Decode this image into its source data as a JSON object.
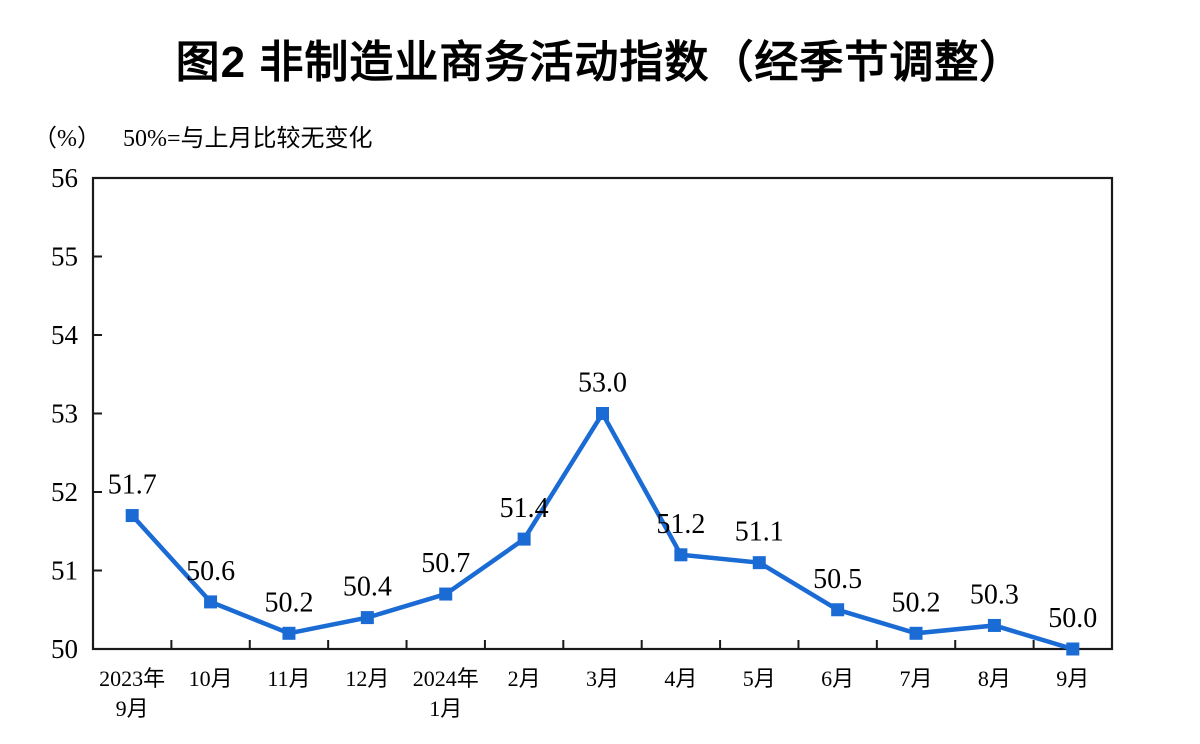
{
  "title": "图2  非制造业商务活动指数（经季节调整）",
  "axis_unit_label": "（%）",
  "reference_note": "50%=与上月比较无变化",
  "colors": {
    "line": "#1B6BD4",
    "frame": "#1a1a1a",
    "text": "#000000",
    "background": "#ffffff"
  },
  "chart_data": {
    "type": "line",
    "title": "图2  非制造业商务活动指数（经季节调整）",
    "subtitle": "50%=与上月比较无变化",
    "ylabel": "（%）",
    "categories": [
      "2023年\n9月",
      "10月",
      "11月",
      "12月",
      "2024年\n1月",
      "2月",
      "3月",
      "4月",
      "5月",
      "6月",
      "7月",
      "8月",
      "9月"
    ],
    "series": [
      {
        "name": "非制造业商务活动指数",
        "values": [
          51.7,
          50.6,
          50.2,
          50.4,
          50.7,
          51.4,
          53.0,
          51.2,
          51.1,
          50.5,
          50.2,
          50.3,
          50.0
        ],
        "data_labels": [
          "51.7",
          "50.6",
          "50.2",
          "50.4",
          "50.7",
          "51.4",
          "53.0",
          "51.2",
          "51.1",
          "50.5",
          "50.2",
          "50.3",
          "50.0"
        ],
        "color": "#1B6BD4",
        "marker": "square"
      }
    ],
    "ylim": [
      50,
      56
    ],
    "ytick_step": 1,
    "ytick_labels": [
      "50",
      "51",
      "52",
      "53",
      "54",
      "55",
      "56"
    ],
    "grid": false,
    "legend_position": "none",
    "plot_frame": "box"
  }
}
